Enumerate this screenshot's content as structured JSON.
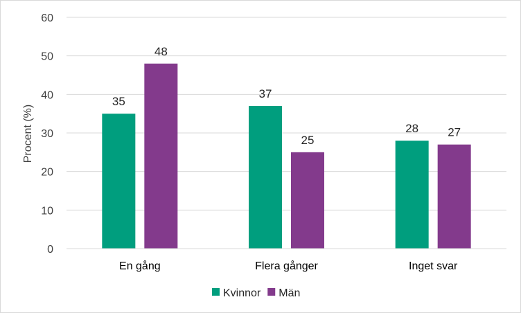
{
  "chart_data": {
    "type": "bar",
    "title": "",
    "xlabel": "",
    "ylabel": "Procent (%)",
    "ylim": [
      0,
      60
    ],
    "yticks": [
      0,
      10,
      20,
      30,
      40,
      50,
      60
    ],
    "grid": true,
    "legend_position": "bottom",
    "categories": [
      "En gång",
      "Flera gånger",
      "Inget svar"
    ],
    "series": [
      {
        "name": "Kvinnor",
        "color": "#009e7e",
        "values": [
          35,
          37,
          28
        ]
      },
      {
        "name": "Män",
        "color": "#833a8c",
        "values": [
          48,
          25,
          27
        ]
      }
    ]
  }
}
